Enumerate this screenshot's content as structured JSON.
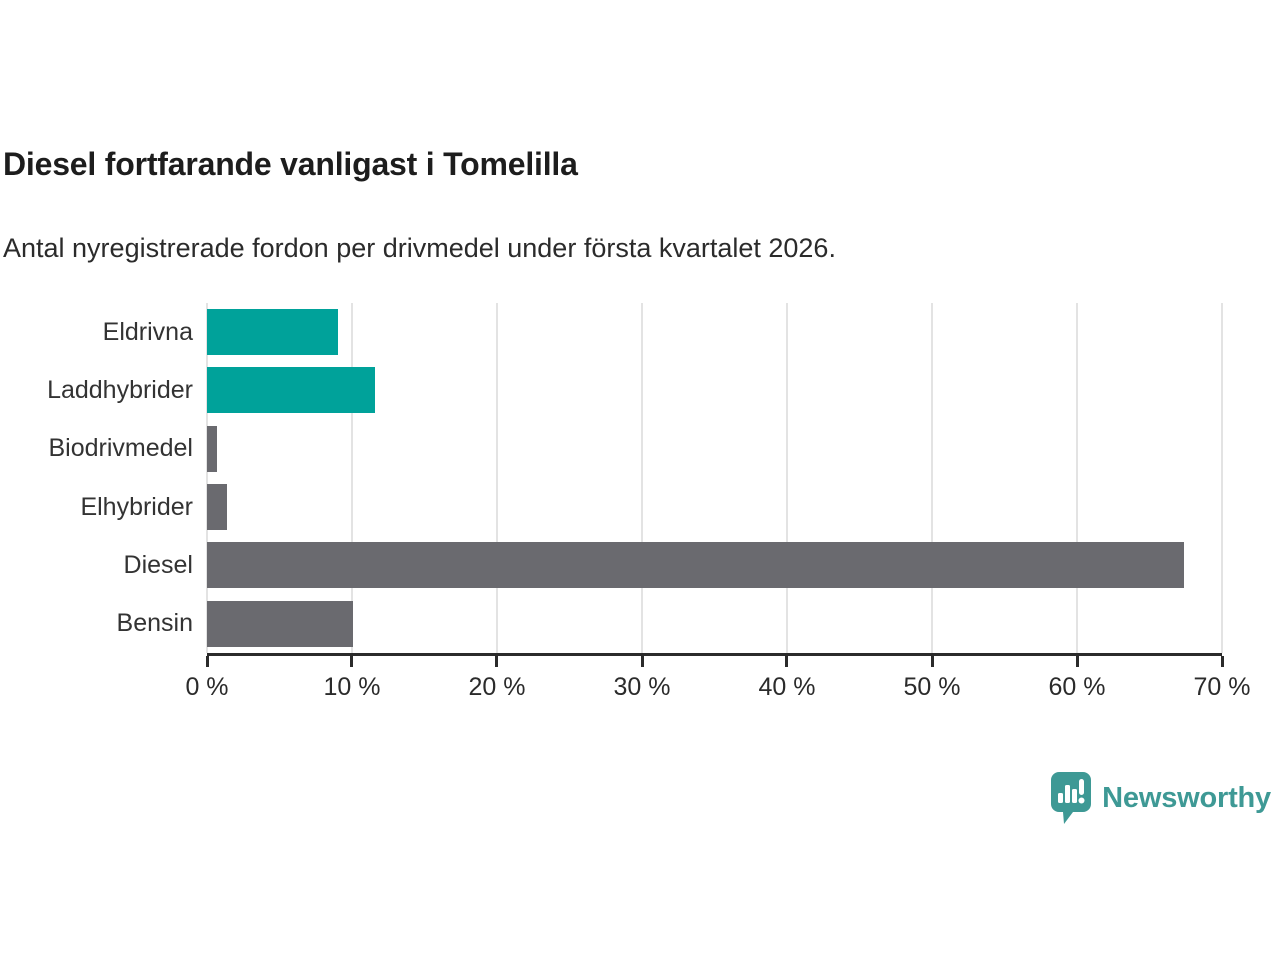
{
  "title": "Diesel fortfarande vanligast i Tomelilla",
  "subtitle": "Antal nyregistrerade fordon per drivmedel under första kvartalet 2026.",
  "chart_data": {
    "type": "bar",
    "orientation": "horizontal",
    "title": "Diesel fortfarande vanligast i Tomelilla",
    "subtitle": "Antal nyregistrerade fordon per drivmedel under första kvartalet 2026.",
    "categories": [
      "Eldrivna",
      "Laddhybrider",
      "Biodrivmedel",
      "Elhybrider",
      "Diesel",
      "Bensin"
    ],
    "values": [
      9.0,
      11.6,
      0.7,
      1.4,
      67.4,
      10.1
    ],
    "unit": "%",
    "xlim": [
      0,
      70
    ],
    "x_ticks": [
      0,
      10,
      20,
      30,
      40,
      50,
      60,
      70
    ],
    "x_tick_labels": [
      "0 %",
      "10 %",
      "20 %",
      "30 %",
      "40 %",
      "50 %",
      "60 %",
      "70 %"
    ],
    "grid": true,
    "legend": false,
    "bar_colors": [
      "#00a29a",
      "#00a29a",
      "#6a6a6f",
      "#6a6a6f",
      "#6a6a6f",
      "#6a6a6f"
    ],
    "colors": {
      "highlight": "#00a29a",
      "default": "#6a6a6f",
      "gridline": "#e3e3e3",
      "axis": "#2b2b2b",
      "title_text": "#1d1d1d",
      "label_text": "#333333"
    }
  },
  "branding": {
    "logo_text": "Newsworthy",
    "logo_color": "#3e9995",
    "logo_icon": "newsworthy-speech-bubble-chart-icon"
  }
}
